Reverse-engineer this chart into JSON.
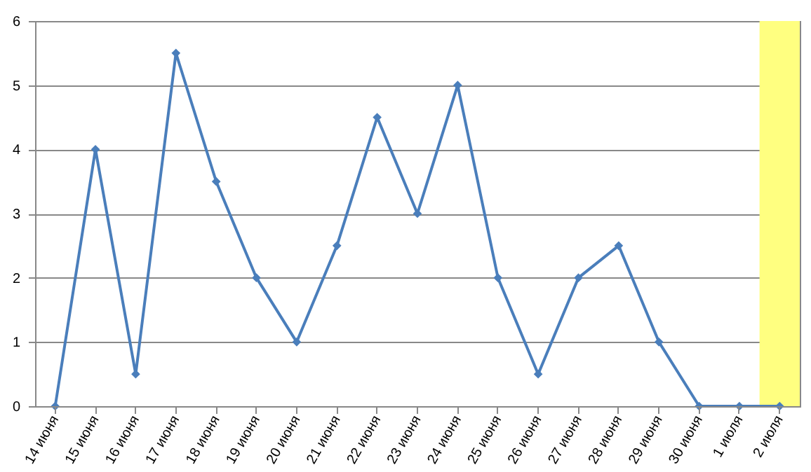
{
  "chart_data": {
    "type": "line",
    "categories": [
      "14 июня",
      "15 июня",
      "16 июня",
      "17 июня",
      "18 июня",
      "19 июня",
      "20 июня",
      "21 июня",
      "22 июня",
      "23 июня",
      "24 июня",
      "25 июня",
      "26 июня",
      "27 июня",
      "28 июня",
      "29 июня",
      "30 июня",
      "1 июля",
      "2 июля"
    ],
    "series": [
      {
        "color": "#4a7ebb",
        "values": [
          0,
          4,
          0.5,
          5.5,
          3.5,
          2,
          1,
          2.5,
          4.5,
          3,
          5,
          2,
          0.5,
          2,
          2.5,
          1,
          0,
          0,
          0
        ]
      }
    ],
    "ylim": [
      0,
      6
    ],
    "yticks": [
      0,
      1,
      2,
      3,
      4,
      5,
      6
    ],
    "grid": "y",
    "marker": "diamond",
    "line_style": "solid",
    "bands": [
      {
        "axis": "x",
        "from": "2 июля",
        "to": "2 июля",
        "color": "#ffff80"
      }
    ]
  }
}
